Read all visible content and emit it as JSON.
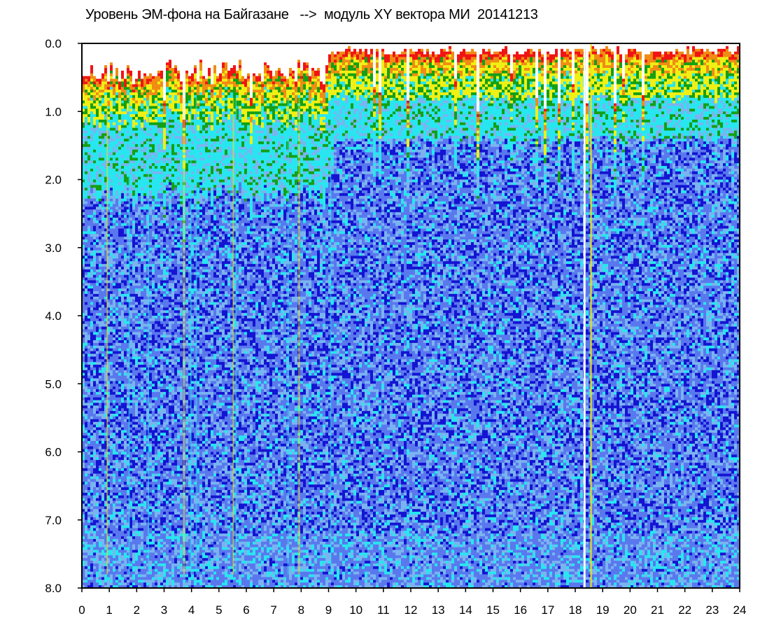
{
  "chart_data": {
    "type": "heatmap",
    "title": "Уровень ЭМ-фона на Байгазане   -->  модуль XY вектора МИ  20141213",
    "xlabel": "",
    "ylabel": "",
    "x_range": [
      0,
      24
    ],
    "y_range": [
      0.0,
      8.0
    ],
    "y_inverted": true,
    "x_ticks": [
      "0",
      "1",
      "2",
      "3",
      "4",
      "5",
      "6",
      "7",
      "8",
      "9",
      "10",
      "11",
      "12",
      "13",
      "14",
      "15",
      "16",
      "17",
      "18",
      "19",
      "20",
      "21",
      "22",
      "23",
      "24"
    ],
    "y_ticks": [
      "0.0",
      "1.0",
      "2.0",
      "3.0",
      "4.0",
      "5.0",
      "6.0",
      "7.0",
      "8.0"
    ],
    "grid": false,
    "colormap": [
      "#1414d2",
      "#5a78ee",
      "#7ab4f0",
      "#28e6f0",
      "#14a014",
      "#f0f014",
      "#f08c14",
      "#f01414",
      "#ffffff"
    ],
    "description_bands": [
      {
        "y_from": 0.0,
        "y_to": 0.3,
        "level": "high (red/orange)"
      },
      {
        "y_from": 0.3,
        "y_to": 0.7,
        "level": "yellow/green"
      },
      {
        "y_from": 0.7,
        "y_to": 1.5,
        "level": "cyan"
      },
      {
        "y_from": 1.5,
        "y_to": 8.0,
        "level": "blue background"
      }
    ],
    "white_gap_hour": 18.3,
    "yellow_line_hour": 18.55
  }
}
